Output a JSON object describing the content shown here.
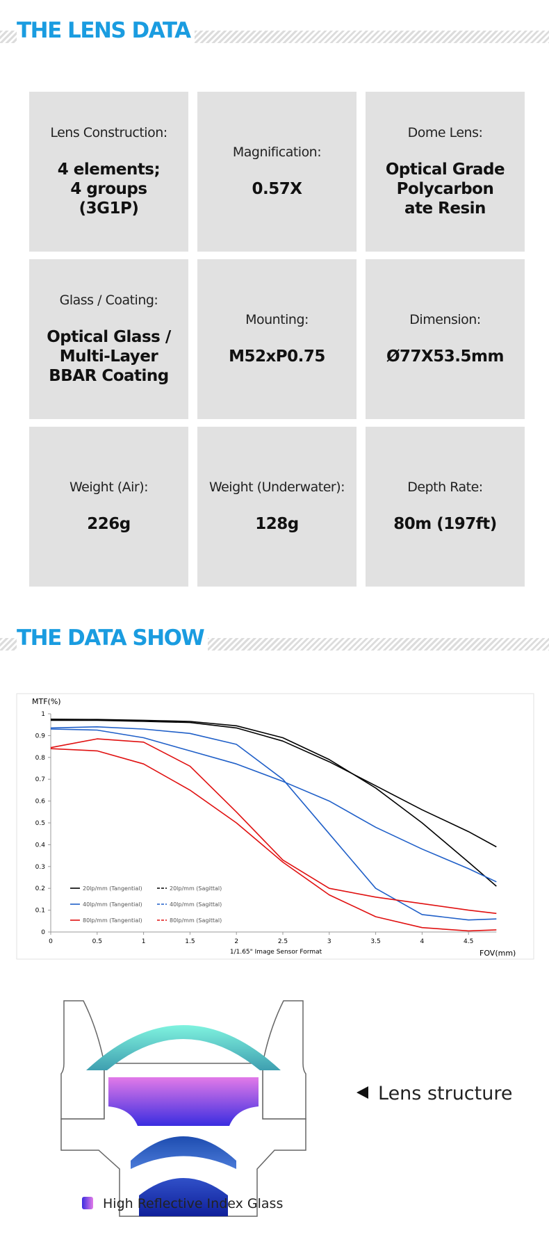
{
  "sections": [
    "THE LENS DATA",
    "THE DATA SHOW"
  ],
  "specs": [
    {
      "label": "Lens Construction:",
      "value": [
        "4 elements;",
        "4 groups",
        "(3G1P)"
      ]
    },
    {
      "label": "Magnification:",
      "value": [
        "0.57X"
      ]
    },
    {
      "label": "Dome Lens:",
      "value": [
        "Optical Grade",
        "Polycarbon",
        "ate Resin"
      ]
    },
    {
      "label": "Glass / Coating:",
      "value": [
        "Optical Glass /",
        "Multi-Layer",
        "BBAR Coating"
      ]
    },
    {
      "label": "Mounting:",
      "value": [
        "M52xP0.75"
      ]
    },
    {
      "label": "Dimension:",
      "value": [
        "Ø77X53.5mm"
      ]
    },
    {
      "label": "Weight (Air):",
      "value": [
        "226g"
      ]
    },
    {
      "label": "Weight (Underwater):",
      "value": [
        "128g"
      ]
    },
    {
      "label": "Depth Rate:",
      "value": [
        "80m (197ft)"
      ]
    }
  ],
  "chart_data": {
    "type": "line",
    "y_label": "MTF(%)",
    "x_label": "FOV(mm)",
    "subtitle": "1/1.65\" Image Sensor Format",
    "x": [
      0,
      0.5,
      1,
      1.5,
      2,
      2.5,
      3,
      3.5,
      4,
      4.5,
      4.8
    ],
    "xlim": [
      0,
      4.8
    ],
    "xticks": [
      0,
      0.5,
      1,
      1.5,
      2,
      2.5,
      3,
      3.5,
      4,
      4.5
    ],
    "ylim": [
      0,
      1
    ],
    "yticks": [
      0,
      0.1,
      0.2,
      0.3,
      0.4,
      0.5,
      0.6,
      0.7,
      0.8,
      0.9,
      1
    ],
    "series": [
      {
        "name": "20lp/mm (Tangential)",
        "color": "#000000",
        "dash": false,
        "values": [
          0.975,
          0.974,
          0.97,
          0.965,
          0.945,
          0.89,
          0.79,
          0.66,
          0.5,
          0.32,
          0.21
        ]
      },
      {
        "name": "20lp/mm (Sagittal)",
        "color": "#000000",
        "dash": true,
        "values": [
          0.97,
          0.97,
          0.965,
          0.96,
          0.935,
          0.875,
          0.78,
          0.67,
          0.56,
          0.46,
          0.39
        ]
      },
      {
        "name": "40lp/mm (Tangential)",
        "color": "#1f5fc8",
        "dash": false,
        "values": [
          0.935,
          0.94,
          0.93,
          0.91,
          0.86,
          0.7,
          0.45,
          0.2,
          0.08,
          0.055,
          0.06
        ]
      },
      {
        "name": "40lp/mm (Sagittal)",
        "color": "#1f5fc8",
        "dash": true,
        "values": [
          0.93,
          0.925,
          0.89,
          0.83,
          0.77,
          0.69,
          0.6,
          0.48,
          0.38,
          0.29,
          0.23
        ]
      },
      {
        "name": "80lp/mm (Tangential)",
        "color": "#e01010",
        "dash": false,
        "values": [
          0.845,
          0.885,
          0.87,
          0.76,
          0.55,
          0.33,
          0.2,
          0.16,
          0.13,
          0.1,
          0.085
        ]
      },
      {
        "name": "80lp/mm (Sagittal)",
        "color": "#e01010",
        "dash": true,
        "values": [
          0.84,
          0.83,
          0.77,
          0.65,
          0.5,
          0.32,
          0.17,
          0.07,
          0.02,
          0.005,
          0.01
        ]
      }
    ]
  },
  "diagram": {
    "caption": "Lens structure",
    "legend": "High Reflective Index Glass"
  }
}
